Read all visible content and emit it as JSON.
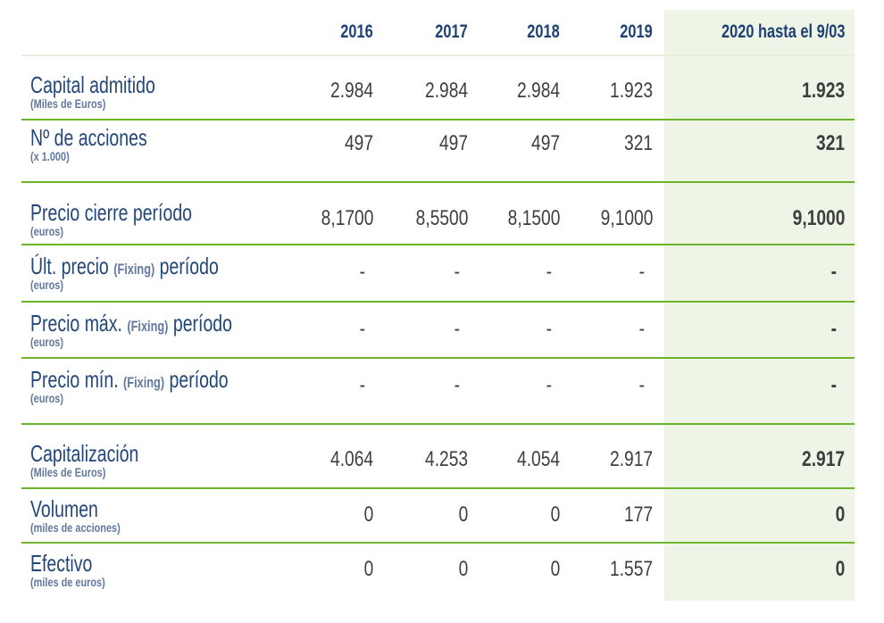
{
  "chart_data": {
    "type": "table",
    "title": "",
    "columns": [
      "2016",
      "2017",
      "2018",
      "2019",
      "2020 hasta el 9/03"
    ],
    "rows": [
      {
        "label": "Capital admitido",
        "unit": "(Miles de Euros)",
        "values": [
          "2.984",
          "2.984",
          "2.984",
          "1.923",
          "1.923"
        ]
      },
      {
        "label": "Nº de acciones",
        "unit": "(x 1.000)",
        "values": [
          "497",
          "497",
          "497",
          "321",
          "321"
        ]
      },
      {
        "label": "Precio cierre período",
        "unit": "(euros)",
        "values": [
          "8,1700",
          "8,5500",
          "8,1500",
          "9,1000",
          "9,1000"
        ]
      },
      {
        "label": "Últ. precio (Fixing) período",
        "unit": "(euros)",
        "values": [
          "-",
          "-",
          "-",
          "-",
          "-"
        ]
      },
      {
        "label": "Precio máx. (Fixing) período",
        "unit": "(euros)",
        "values": [
          "-",
          "-",
          "-",
          "-",
          "-"
        ]
      },
      {
        "label": "Precio mín. (Fixing) período",
        "unit": "(euros)",
        "values": [
          "-",
          "-",
          "-",
          "-",
          "-"
        ]
      },
      {
        "label": "Capitalización",
        "unit": "(Miles de Euros)",
        "values": [
          "4.064",
          "4.253",
          "4.054",
          "2.917",
          "2.917"
        ]
      },
      {
        "label": "Volumen",
        "unit": "(miles de acciones)",
        "values": [
          "0",
          "0",
          "0",
          "177",
          "0"
        ]
      },
      {
        "label": "Efectivo",
        "unit": "(miles de euros)",
        "values": [
          "0",
          "0",
          "0",
          "1.557",
          "0"
        ]
      }
    ],
    "layout": {
      "highlight_last_column": true,
      "grid": "horizontal-green-separators",
      "legend": "none"
    }
  },
  "colors": {
    "row_separator_green": "#6eb52c",
    "header_separator": "#e9efdc",
    "highlight_column_bg": "#eef5e7",
    "label_blue": "#24477a",
    "sublabel_slate_blue": "#61789f",
    "header_year_blue": "#1e4074",
    "value_gray": "#3e3e3e"
  },
  "table": {
    "header": {
      "years": [
        "2016",
        "2017",
        "2018",
        "2019"
      ],
      "highlight": "2020 hasta el 9/03"
    },
    "rows": [
      {
        "label": "Capital admitido",
        "fixing": "",
        "label_suffix": "",
        "sublabel": "(Miles de Euros)",
        "values": [
          "2.984",
          "2.984",
          "2.984",
          "1.923"
        ],
        "highlight_value": "1.923"
      },
      {
        "label": "Nº de acciones",
        "fixing": "",
        "label_suffix": "",
        "sublabel": "(x 1.000)",
        "values": [
          "497",
          "497",
          "497",
          "321"
        ],
        "highlight_value": "321"
      },
      {
        "label": "Precio cierre período",
        "fixing": "",
        "label_suffix": "",
        "sublabel": "(euros)",
        "values": [
          "8,1700",
          "8,5500",
          "8,1500",
          "9,1000"
        ],
        "highlight_value": "9,1000"
      },
      {
        "label": "Últ. precio",
        "fixing": "(Fixing)",
        "label_suffix": "período",
        "sublabel": "(euros)",
        "values": [
          "-",
          "-",
          "-",
          "-"
        ],
        "highlight_value": "-"
      },
      {
        "label": "Precio máx.",
        "fixing": "(Fixing)",
        "label_suffix": "período",
        "sublabel": "(euros)",
        "values": [
          "-",
          "-",
          "-",
          "-"
        ],
        "highlight_value": "-"
      },
      {
        "label": "Precio mín.",
        "fixing": "(Fixing)",
        "label_suffix": "período",
        "sublabel": "(euros)",
        "values": [
          "-",
          "-",
          "-",
          "-"
        ],
        "highlight_value": "-"
      },
      {
        "label": "Capitalización",
        "fixing": "",
        "label_suffix": "",
        "sublabel": "(Miles de Euros)",
        "values": [
          "4.064",
          "4.253",
          "4.054",
          "2.917"
        ],
        "highlight_value": "2.917"
      },
      {
        "label": "Volumen",
        "fixing": "",
        "label_suffix": "",
        "sublabel": "(miles de acciones)",
        "values": [
          "0",
          "0",
          "0",
          "177"
        ],
        "highlight_value": "0"
      },
      {
        "label": "Efectivo",
        "fixing": "",
        "label_suffix": "",
        "sublabel": "(miles de euros)",
        "values": [
          "0",
          "0",
          "0",
          "1.557"
        ],
        "highlight_value": "0"
      }
    ]
  }
}
